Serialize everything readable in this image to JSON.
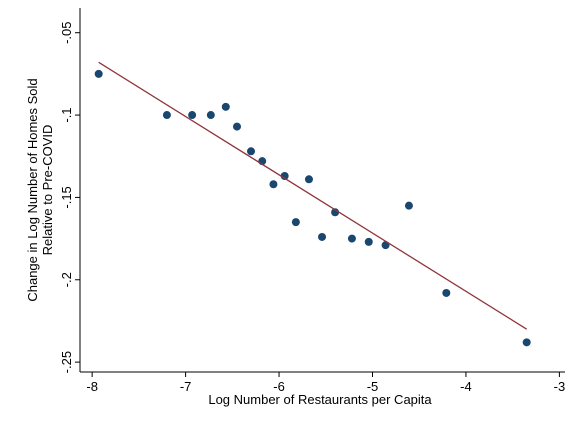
{
  "chart_data": {
    "type": "scatter",
    "x_label": "Log Number of Restaurants per Capita",
    "y_label": [
      "Change in Log Number of Homes Sold",
      "Relative to Pre-COVID"
    ],
    "xlim": [
      -8.13,
      -2.94
    ],
    "ylim": [
      -0.256,
      -0.035
    ],
    "xticks": [
      -8,
      -7,
      -6,
      -5,
      -4,
      -3
    ],
    "yticks": [
      {
        "value": -0.05,
        "label": "-.05"
      },
      {
        "value": -0.1,
        "label": "-.1"
      },
      {
        "value": -0.15,
        "label": "-.15"
      },
      {
        "value": -0.2,
        "label": "-.2"
      },
      {
        "value": -0.25,
        "label": "-.25"
      }
    ],
    "series": [
      {
        "color": "#1a476f",
        "x": [
          -7.93,
          -7.2,
          -6.93,
          -6.73,
          -6.57,
          -6.45,
          -6.3,
          -6.18,
          -6.06,
          -5.94,
          -5.82,
          -5.68,
          -5.54,
          -5.4,
          -5.22,
          -5.04,
          -4.86,
          -4.61,
          -4.21,
          -3.35
        ],
        "values": [
          -0.075,
          -0.1,
          -0.1,
          -0.1,
          -0.095,
          -0.107,
          -0.122,
          -0.128,
          -0.142,
          -0.137,
          -0.165,
          -0.139,
          -0.174,
          -0.159,
          -0.175,
          -0.177,
          -0.179,
          -0.155,
          -0.208,
          -0.238
        ]
      },
      {
        "type": "line",
        "color": "#90353b",
        "x": [
          -7.93,
          -3.35
        ],
        "values": [
          -0.068,
          -0.23
        ]
      }
    ]
  }
}
